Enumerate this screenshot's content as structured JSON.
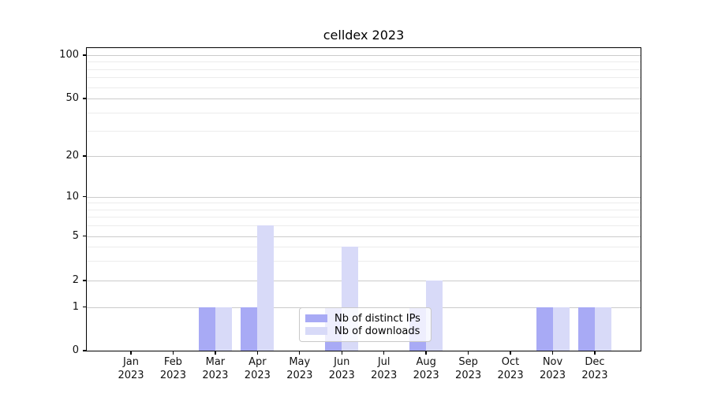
{
  "chart_data": {
    "type": "bar",
    "title": "celldex 2023",
    "month_labels": [
      "Jan",
      "Feb",
      "Mar",
      "Apr",
      "May",
      "Jun",
      "Jul",
      "Aug",
      "Sep",
      "Oct",
      "Nov",
      "Dec"
    ],
    "year_label": "2023",
    "series": [
      {
        "name": "Nb of distinct IPs",
        "color": "#a8aaf5",
        "values": [
          0,
          0,
          1,
          1,
          0,
          1,
          0,
          1,
          0,
          0,
          1,
          1
        ]
      },
      {
        "name": "Nb of downloads",
        "color": "#d8daf8",
        "values": [
          0,
          0,
          1,
          6,
          0,
          4,
          0,
          2,
          0,
          0,
          1,
          1
        ]
      }
    ],
    "y_axis": {
      "ticks": [
        0,
        1,
        2,
        5,
        10,
        20,
        50,
        100
      ],
      "minor_gridlines": [
        3,
        4,
        6,
        7,
        8,
        9,
        30,
        40,
        60,
        70,
        80,
        90
      ],
      "scale": "linear from 0 to 1, logarithmic above 1",
      "ylim": [
        0,
        112
      ]
    },
    "grid": "horizontal",
    "legend": {
      "position": "lower-center-inside",
      "entries": [
        "Nb of distinct IPs",
        "Nb of downloads"
      ]
    }
  }
}
